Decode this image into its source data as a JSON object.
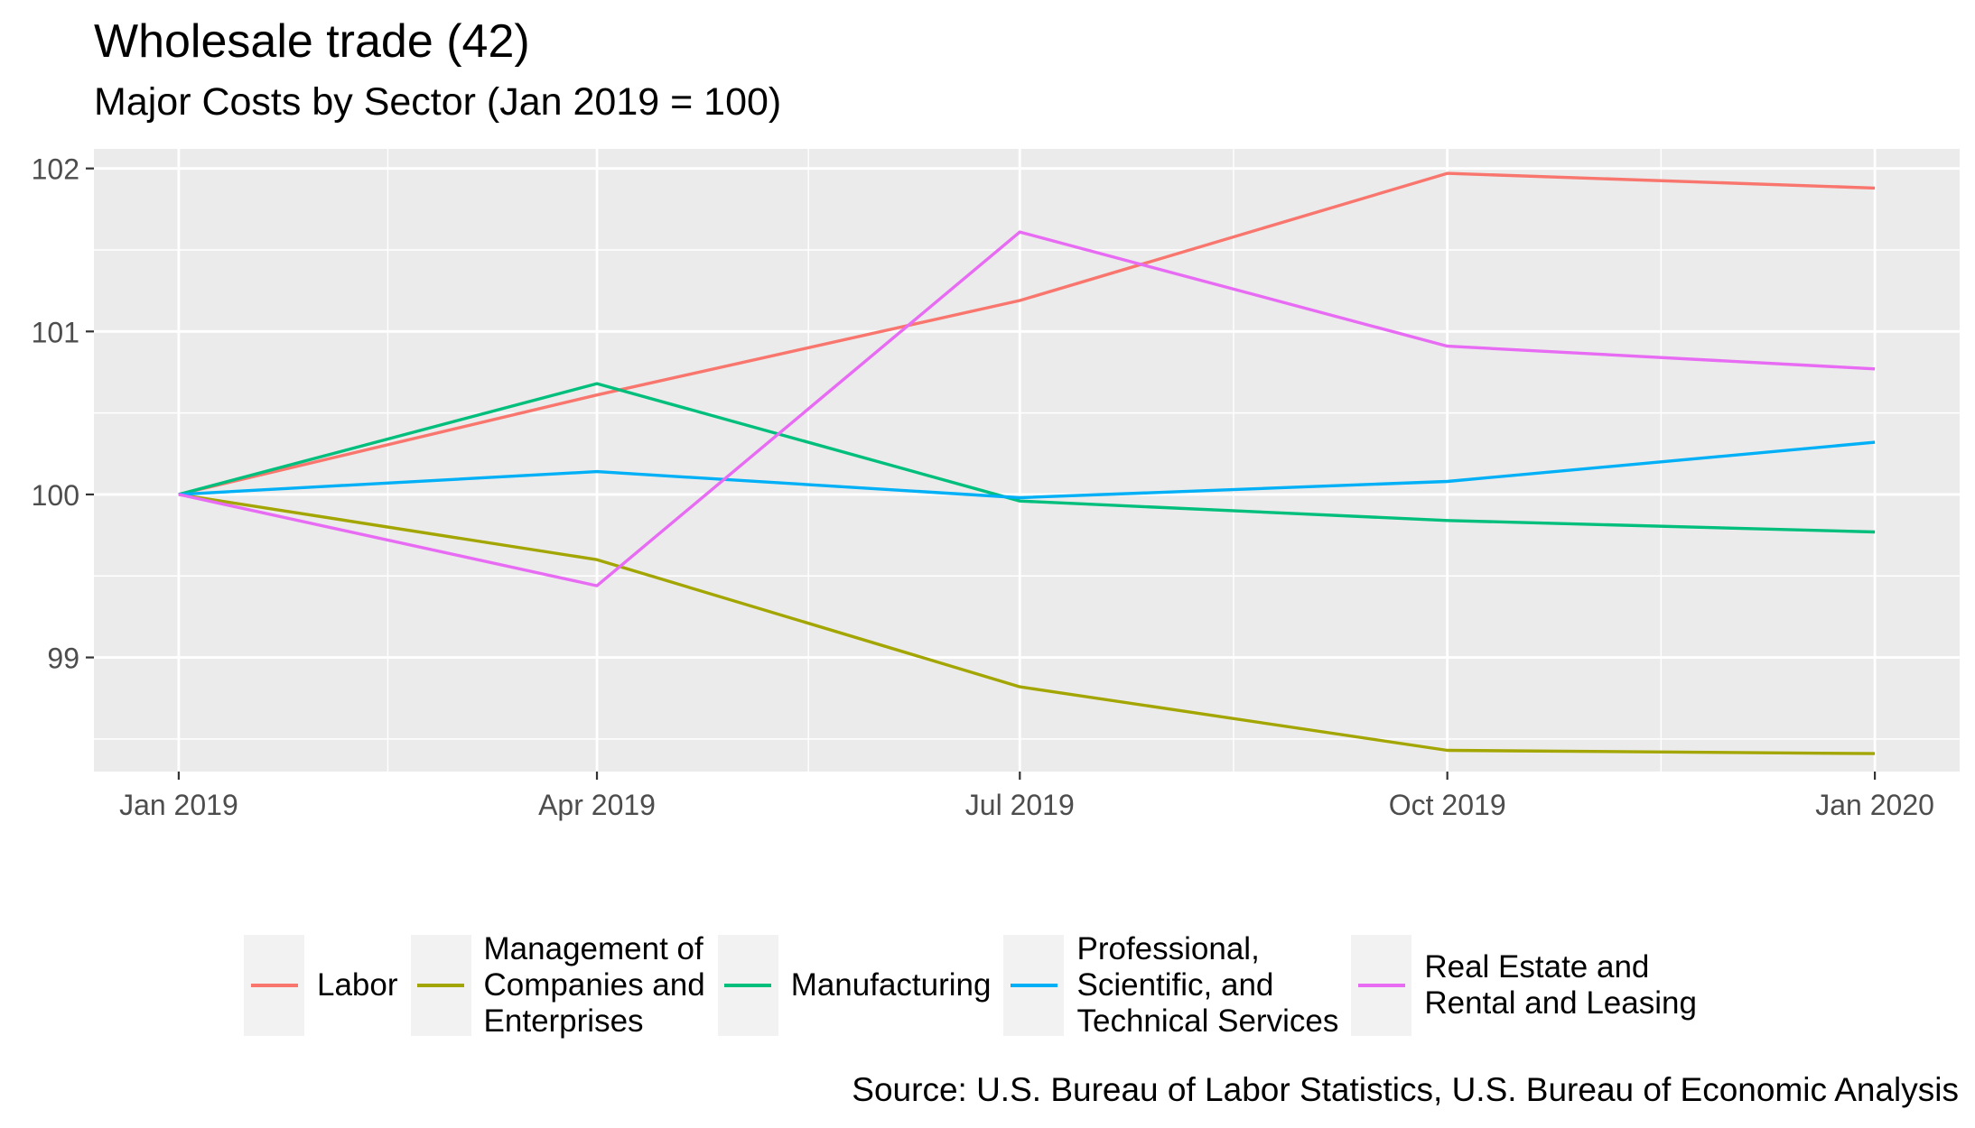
{
  "chart_data": {
    "type": "line",
    "title": "Wholesale trade (42)",
    "subtitle": "Major Costs by Sector (Jan 2019 = 100)",
    "caption": "Source: U.S. Bureau of Labor Statistics, U.S. Bureau of Economic Analysis",
    "x": [
      "2019-01-01",
      "2019-04-01",
      "2019-07-01",
      "2019-10-01",
      "2020-01-01"
    ],
    "x_tick_labels": [
      "Jan 2019",
      "Apr 2019",
      "Jul 2019",
      "Oct 2019",
      "Jan 2020"
    ],
    "y_ticks": [
      99,
      100,
      101,
      102
    ],
    "ylim": [
      98.3,
      102.12
    ],
    "grid": true,
    "legend_position": "bottom",
    "series": [
      {
        "name": "Labor",
        "name_lines": [
          "Labor"
        ],
        "color": "#F8766D",
        "values": [
          100,
          100.61,
          101.19,
          101.97,
          101.88
        ]
      },
      {
        "name": "Management of Companies and Enterprises",
        "name_lines": [
          "Management of",
          "Companies and",
          "Enterprises"
        ],
        "color": "#A3A500",
        "values": [
          100,
          99.6,
          98.82,
          98.43,
          98.41
        ]
      },
      {
        "name": "Manufacturing",
        "name_lines": [
          "Manufacturing"
        ],
        "color": "#00BF7D",
        "values": [
          100,
          100.68,
          99.96,
          99.84,
          99.77
        ]
      },
      {
        "name": "Professional, Scientific, and Technical Services",
        "name_lines": [
          "Professional,",
          "Scientific, and",
          "Technical Services"
        ],
        "color": "#00B0F6",
        "values": [
          100,
          100.14,
          99.98,
          100.08,
          100.32
        ]
      },
      {
        "name": "Real Estate and Rental and Leasing",
        "name_lines": [
          "Real Estate and",
          "Rental and Leasing"
        ],
        "color": "#E76BF3",
        "values": [
          100,
          99.44,
          101.61,
          100.91,
          100.77
        ]
      }
    ]
  }
}
